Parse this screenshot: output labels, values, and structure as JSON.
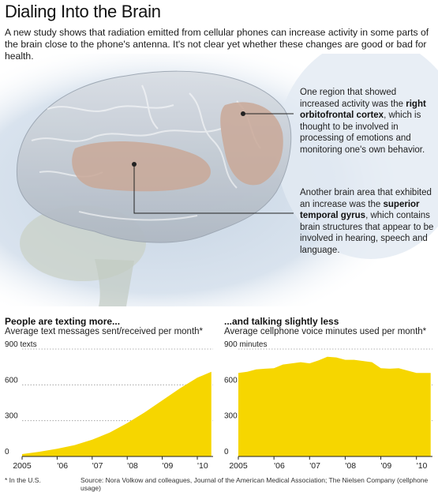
{
  "header": {
    "title": "Dialing Into the Brain",
    "subtitle": "A new study shows that radiation emitted from cellular phones can increase activity in some parts of the brain close to the phone's antenna. It's not clear yet whether these changes are good or bad for health."
  },
  "callouts": [
    {
      "pre": "One region that showed increased activity was the",
      "bold": "right orbitofrontal cortex",
      "post": ", which is thought to be involved in processing of emotions and monitoring one's own behavior."
    },
    {
      "pre": "Another brain area that exhibited an increase was the",
      "bold": "superior temporal gyrus",
      "post": ", which contains brain structures that appear to be involved in hearing, speech and language."
    }
  ],
  "footer": {
    "note": "* In the U.S.",
    "source": "Source: Nora Volkow and colleagues, Journal of the American Medical Association; The Nielsen Company (cellphone usage)"
  },
  "colors": {
    "fill": "#f6d600",
    "brain": "#b9c2cc",
    "highlight": "#c9a898"
  },
  "chart_data": [
    {
      "type": "area",
      "title": "People are texting more...",
      "subtitle": "Average text messages sent/received per month*",
      "y_unit_label": "texts",
      "yticks": [
        0,
        300,
        600,
        900
      ],
      "ylim": [
        0,
        900
      ],
      "xticks": [
        "2005",
        "'06",
        "'07",
        "'08",
        "'09",
        "'10"
      ],
      "x": [
        2005.0,
        2005.5,
        2006.0,
        2006.5,
        2007.0,
        2007.5,
        2008.0,
        2008.5,
        2009.0,
        2009.5,
        2010.0,
        2010.4
      ],
      "values": [
        20,
        40,
        65,
        95,
        140,
        200,
        280,
        370,
        470,
        570,
        660,
        710
      ]
    },
    {
      "type": "area",
      "title": "...and talking slightly less",
      "subtitle": "Average cellphone voice minutes used per month*",
      "y_unit_label": "minutes",
      "yticks": [
        0,
        300,
        600,
        900
      ],
      "ylim": [
        0,
        900
      ],
      "xticks": [
        "2005",
        "'06",
        "'07",
        "'08",
        "'09",
        "'10"
      ],
      "x": [
        2005.0,
        2005.25,
        2005.5,
        2005.75,
        2006.0,
        2006.25,
        2006.5,
        2006.75,
        2007.0,
        2007.25,
        2007.5,
        2007.75,
        2008.0,
        2008.25,
        2008.5,
        2008.75,
        2009.0,
        2009.25,
        2009.5,
        2009.75,
        2010.0,
        2010.25,
        2010.4
      ],
      "values": [
        700,
        710,
        730,
        735,
        740,
        770,
        780,
        790,
        780,
        805,
        835,
        830,
        810,
        810,
        800,
        790,
        740,
        735,
        740,
        720,
        700,
        700,
        700
      ]
    }
  ]
}
